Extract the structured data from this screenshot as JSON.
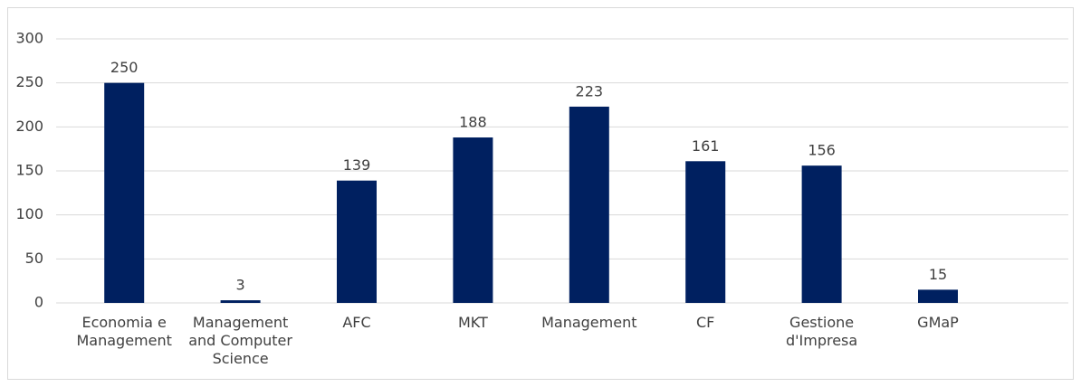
{
  "chart_data": {
    "type": "bar",
    "categories": [
      "Economia e Management",
      "Management and Computer Science",
      "AFC",
      "MKT",
      "Management",
      "CF",
      "Gestione d'Impresa",
      "GMaP"
    ],
    "values": [
      250,
      3,
      139,
      188,
      223,
      161,
      156,
      15
    ],
    "color": "#002060",
    "ylim": [
      0,
      300
    ],
    "yticks": [
      0,
      50,
      100,
      150,
      200,
      250,
      300
    ],
    "grid": true
  }
}
